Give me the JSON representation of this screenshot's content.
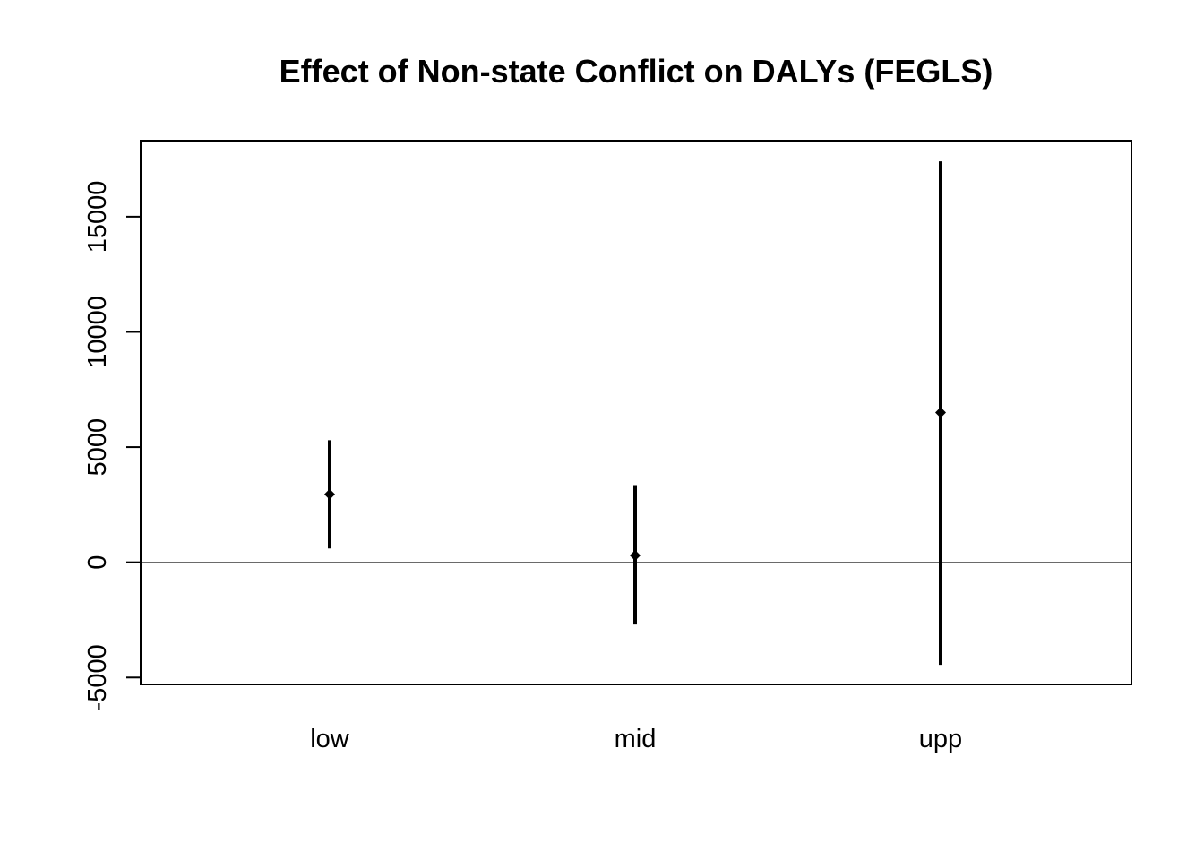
{
  "chart_data": {
    "type": "errorbar",
    "title": "Effect of Non-state Conflict on DALYs (FEGLS)",
    "xlabel": "",
    "ylabel": "",
    "categories": [
      "low",
      "mid",
      "upp"
    ],
    "estimates": [
      2950,
      300,
      6500
    ],
    "lower": [
      600,
      -2700,
      -4450
    ],
    "upper": [
      5300,
      3350,
      17400
    ],
    "ylim": [
      -5300,
      18300
    ],
    "yticks": [
      -5000,
      0,
      5000,
      10000,
      15000
    ],
    "ytick_labels": [
      "-5000",
      "0",
      "5000",
      "10000",
      "15000"
    ],
    "reference_line": 0,
    "grid": false,
    "legend": "none",
    "colors": {
      "marks": "#000000",
      "reference_line": "#555555",
      "background": "#ffffff"
    }
  }
}
